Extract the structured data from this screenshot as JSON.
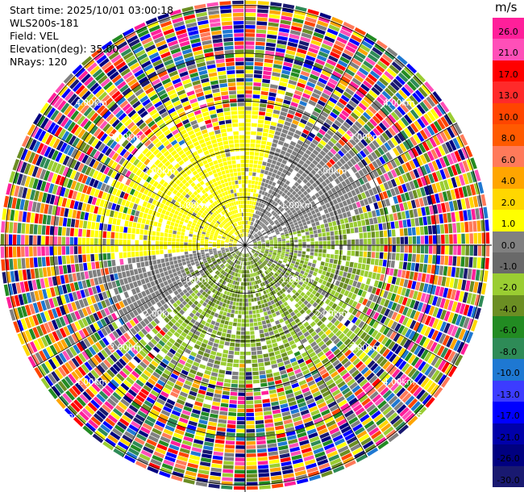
{
  "meta": {
    "start_time": "Start time: 2025/10/01 03:00:18",
    "site": "WLS200s-181",
    "field": "Field: VEL",
    "elevation": "Elevation(deg): 35.00",
    "nrays": "NRays: 120"
  },
  "colorbar": {
    "unit": "m/s",
    "levels": [
      "26.0",
      "21.0",
      "17.0",
      "13.0",
      "10.0",
      "8.0",
      "6.0",
      "4.0",
      "2.0",
      "1.0",
      "0.0",
      "-1.0",
      "-2.0",
      "-4.0",
      "-6.0",
      "-8.0",
      "-10.0",
      "-13.0",
      "-17.0",
      "-21.0",
      "-26.0",
      "-30.0"
    ],
    "colors": [
      "#ff1f9a",
      "#ff4fb8",
      "#ff0000",
      "#ff2a2a",
      "#ff4500",
      "#ff5a00",
      "#ff7a5a",
      "#ffa500",
      "#ffd700",
      "#ffff00",
      "#808080",
      "#696969",
      "#9acd32",
      "#6b8e23",
      "#228b22",
      "#2e8b57",
      "#1e78d2",
      "#3c3cff",
      "#0000ff",
      "#0000aa",
      "#000080",
      "#191970"
    ]
  },
  "chart_data": {
    "type": "ppi",
    "field": "VEL",
    "unit": "m/s",
    "n_rays": 120,
    "elevation_deg": 35.0,
    "range_rings_km": [
      1.0,
      2.0,
      3.0,
      4.0,
      5.0
    ],
    "ring_labels": [
      "1.00km",
      "2.00km",
      "3.00km",
      "4.00km",
      "5.00km"
    ],
    "max_range_km": 5.1,
    "grid": true,
    "sectors": [
      {
        "from_deg": 0,
        "to_deg": 15,
        "dominant": "yellow",
        "velocity_ms": 3.0
      },
      {
        "from_deg": 15,
        "to_deg": 75,
        "dominant": "gray",
        "velocity_ms": 0.0
      },
      {
        "from_deg": 75,
        "to_deg": 150,
        "dominant": "yellowgreen",
        "velocity_ms": -1.5
      },
      {
        "from_deg": 150,
        "to_deg": 230,
        "dominant": "yellowgreen",
        "velocity_ms": -1.5
      },
      {
        "from_deg": 230,
        "to_deg": 265,
        "dominant": "gray",
        "velocity_ms": 0.0
      },
      {
        "from_deg": 265,
        "to_deg": 360,
        "dominant": "yellow",
        "velocity_ms": 3.0
      }
    ],
    "noise_begins_km": 3.8
  }
}
